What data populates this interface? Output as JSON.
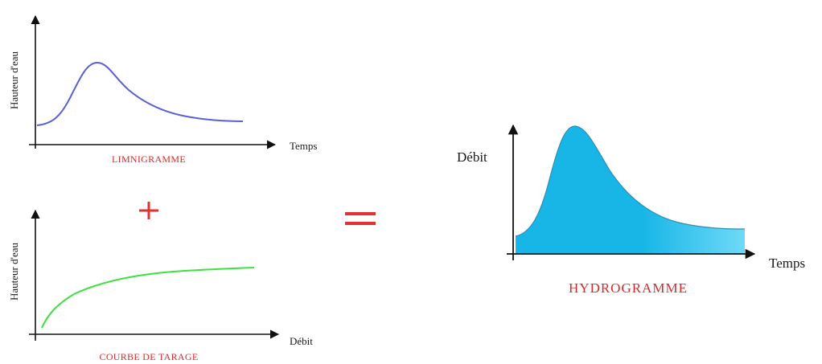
{
  "colors": {
    "axis": "#111111",
    "title_red": "#d62a2a",
    "limnigramme_curve": "#5b5fd6",
    "tarage_curve": "#3fe03f",
    "hydro_fill_dark": "#17b6e6",
    "hydro_fill_light": "#6fd9f7",
    "hydro_stroke": "#2a8fb5",
    "operator_red": "#e53030"
  },
  "limnigramme": {
    "title": "LIMNIGRAMME",
    "y_label": "Hauteur d'eau",
    "x_label": "Temps"
  },
  "plus_operator": "+",
  "equals_operator": "=",
  "courbe_de_tarage": {
    "title": "COURBE DE TARAGE",
    "y_label": "Hauteur d'eau",
    "x_label": "Débit"
  },
  "hydrogramme": {
    "title": "HYDROGRAMME",
    "y_label": "Débit",
    "x_label": "Temps"
  }
}
